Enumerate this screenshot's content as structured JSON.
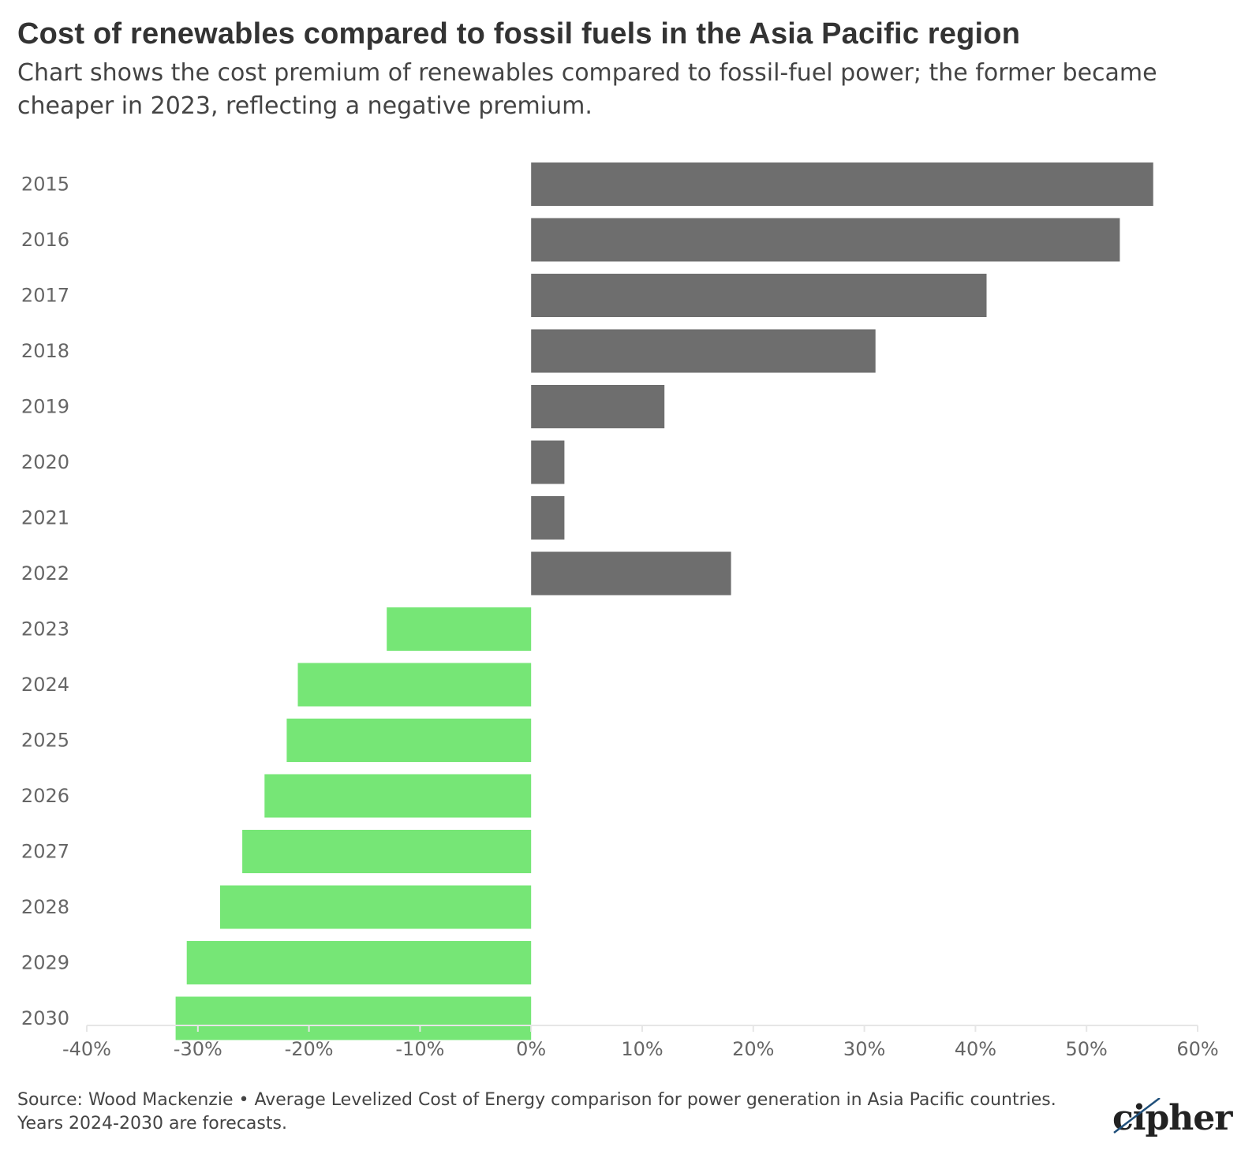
{
  "header": {
    "title": "Cost of renewables compared to fossil fuels in the Asia Pacific region",
    "subtitle": "Chart shows the cost premium of renewables compared to fossil-fuel power; the former became cheaper in 2023, reflecting a negative premium."
  },
  "footer": {
    "source": "Source: Wood Mackenzie • Average Levelized Cost of Energy comparison for power generation in Asia Pacific countries. Years 2024-2030 are forecasts.",
    "logo_text": "cipher"
  },
  "colors": {
    "positive": "#6e6e6e",
    "negative": "#76e676",
    "axis": "#e6e6e6",
    "text": "#666666"
  },
  "chart_data": {
    "type": "bar",
    "orientation": "horizontal",
    "title": "Cost of renewables compared to fossil fuels in the Asia Pacific region",
    "subtitle": "Chart shows the cost premium of renewables compared to fossil-fuel power; the former became cheaper in 2023, reflecting a negative premium.",
    "xlabel": "",
    "ylabel": "",
    "categories": [
      "2015",
      "2016",
      "2017",
      "2018",
      "2019",
      "2020",
      "2021",
      "2022",
      "2023",
      "2024",
      "2025",
      "2026",
      "2027",
      "2028",
      "2029",
      "2030"
    ],
    "values": [
      56,
      53,
      41,
      31,
      12,
      3,
      3,
      18,
      -13,
      -21,
      -22,
      -24,
      -26,
      -28,
      -31,
      -32
    ],
    "unit": "%",
    "xlim": [
      -40,
      60
    ],
    "xticks": [
      -40,
      -30,
      -20,
      -10,
      0,
      10,
      20,
      30,
      40,
      50,
      60
    ],
    "xtick_labels": [
      "-40%",
      "-30%",
      "-20%",
      "-10%",
      "0%",
      "10%",
      "20%",
      "30%",
      "40%",
      "50%",
      "60%"
    ],
    "grid": false,
    "legend": "none"
  }
}
